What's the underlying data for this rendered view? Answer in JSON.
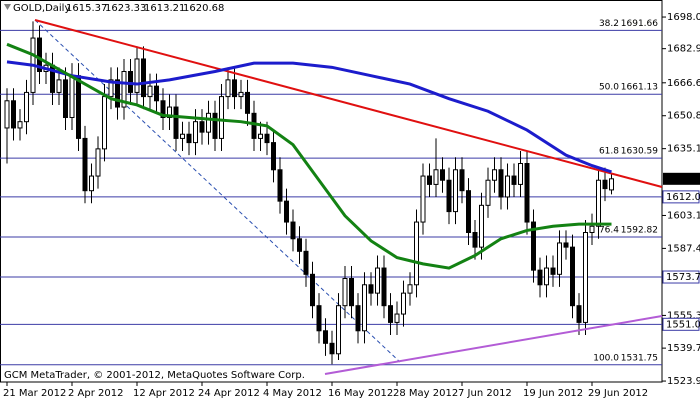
{
  "chart_data": {
    "type": "candlestick",
    "title": "GOLD,Daily",
    "footer": "GCM MetaTrader, © 2001-2012, MetaQuotes Software Corp.",
    "categories": [
      "21 Mar 2012",
      null,
      null,
      null,
      null,
      null,
      null,
      null,
      null,
      null,
      "2 Apr 2012",
      null,
      null,
      null,
      null,
      null,
      null,
      null,
      null,
      null,
      "12 Apr 2012",
      null,
      null,
      null,
      null,
      null,
      null,
      null,
      null,
      null,
      "24 Apr 2012",
      null,
      null,
      null,
      null,
      null,
      null,
      null,
      null,
      null,
      "4 May 2012",
      null,
      null,
      null,
      null,
      null,
      null,
      null,
      null,
      null,
      "16 May 2012",
      null,
      null,
      null,
      null,
      null,
      null,
      null,
      null,
      null,
      "28 May 2012",
      null,
      null,
      null,
      null,
      null,
      null,
      null,
      null,
      null,
      "7 Jun 2012",
      null,
      null,
      null,
      null,
      null,
      null,
      null,
      null,
      null,
      "19 Jun 2012",
      null,
      null,
      null,
      null,
      null,
      null,
      null,
      null,
      null,
      "29 Jun 2012",
      null,
      null,
      null
    ],
    "open": [
      1645,
      1658,
      1645,
      1648,
      1662,
      1688,
      1672,
      1675,
      1662,
      1668,
      1650,
      1670,
      1640,
      1615,
      1622,
      1635,
      1660,
      1668,
      1655,
      1672,
      1662,
      1678,
      1660,
      1665,
      1658,
      1650,
      1655,
      1640,
      1642,
      1638,
      1648,
      1643,
      1652,
      1640,
      1660,
      1668,
      1660,
      1662,
      1652,
      1640,
      1642,
      1638,
      1625,
      1610,
      1600,
      1592,
      1586,
      1575,
      1560,
      1548,
      1542,
      1537,
      1560,
      1573,
      1560,
      1548,
      1570,
      1566,
      1578,
      1560,
      1552,
      1556,
      1566,
      1570,
      1600,
      1622,
      1618,
      1625,
      1620,
      1605,
      1625,
      1615,
      1595,
      1588,
      1608,
      1620,
      1625,
      1612,
      1622,
      1618,
      1628,
      1600,
      1577,
      1570,
      1578,
      1575,
      1590,
      1588,
      1560,
      1552,
      1595,
      1598,
      1620,
      1615.37
    ],
    "high": [
      1664,
      1664,
      1654,
      1668,
      1696,
      1694,
      1681,
      1681,
      1674,
      1674,
      1676,
      1676,
      1646,
      1628,
      1641,
      1666,
      1674,
      1674,
      1678,
      1678,
      1684,
      1684,
      1671,
      1671,
      1664,
      1661,
      1661,
      1648,
      1648,
      1654,
      1654,
      1658,
      1658,
      1666,
      1674,
      1674,
      1668,
      1668,
      1658,
      1648,
      1648,
      1644,
      1631,
      1616,
      1606,
      1598,
      1592,
      1581,
      1566,
      1554,
      1548,
      1566,
      1579,
      1579,
      1566,
      1576,
      1576,
      1584,
      1584,
      1566,
      1562,
      1572,
      1576,
      1606,
      1628,
      1628,
      1640,
      1631,
      1626,
      1631,
      1631,
      1621,
      1601,
      1614,
      1626,
      1631,
      1631,
      1628,
      1628,
      1634,
      1634,
      1606,
      1583,
      1584,
      1584,
      1596,
      1596,
      1594,
      1566,
      1601,
      1604,
      1626,
      1626,
      1623.33
    ],
    "low": [
      1628,
      1639,
      1639,
      1642,
      1656,
      1666,
      1666,
      1656,
      1656,
      1644,
      1644,
      1634,
      1609,
      1609,
      1616,
      1629,
      1654,
      1649,
      1649,
      1656,
      1656,
      1654,
      1654,
      1652,
      1644,
      1644,
      1634,
      1634,
      1632,
      1632,
      1637,
      1637,
      1634,
      1634,
      1654,
      1654,
      1654,
      1646,
      1634,
      1634,
      1632,
      1619,
      1604,
      1594,
      1586,
      1580,
      1569,
      1554,
      1542,
      1536,
      1532,
      1534,
      1554,
      1554,
      1542,
      1542,
      1560,
      1560,
      1554,
      1546,
      1546,
      1550,
      1560,
      1564,
      1594,
      1612,
      1612,
      1614,
      1599,
      1599,
      1609,
      1589,
      1582,
      1582,
      1602,
      1614,
      1606,
      1606,
      1612,
      1612,
      1594,
      1571,
      1564,
      1564,
      1569,
      1569,
      1582,
      1554,
      1546,
      1546,
      1589,
      1592,
      1610,
      1613.21
    ],
    "close": [
      1658,
      1645,
      1648,
      1662,
      1688,
      1672,
      1675,
      1662,
      1668,
      1650,
      1670,
      1640,
      1615,
      1622,
      1635,
      1660,
      1668,
      1655,
      1672,
      1662,
      1678,
      1660,
      1665,
      1658,
      1650,
      1655,
      1640,
      1642,
      1638,
      1648,
      1643,
      1652,
      1640,
      1660,
      1668,
      1660,
      1662,
      1652,
      1640,
      1642,
      1638,
      1625,
      1610,
      1600,
      1592,
      1586,
      1575,
      1560,
      1548,
      1542,
      1537,
      1560,
      1573,
      1560,
      1548,
      1570,
      1566,
      1578,
      1560,
      1552,
      1556,
      1566,
      1570,
      1600,
      1622,
      1618,
      1625,
      1620,
      1605,
      1625,
      1615,
      1595,
      1588,
      1608,
      1620,
      1625,
      1612,
      1622,
      1618,
      1628,
      1600,
      1577,
      1570,
      1578,
      1575,
      1590,
      1588,
      1560,
      1552,
      1595,
      1598,
      1620,
      1616,
      1620.68
    ],
    "up_color": "#ffffff",
    "down_color": "#000000",
    "overlays": [
      {
        "color": "#1c1ccc",
        "x": [
          0,
          4,
          10,
          16,
          20,
          25,
          32,
          38,
          44,
          50,
          56,
          62,
          68,
          74,
          80,
          86,
          90,
          93
        ],
        "values": [
          1676.6,
          1675,
          1670,
          1667,
          1666,
          1668,
          1672,
          1676,
          1676,
          1674,
          1670,
          1666,
          1659,
          1653,
          1644,
          1632,
          1627,
          1624
        ]
      },
      {
        "color": "#138213",
        "x": [
          0,
          4,
          8,
          12,
          16,
          20,
          24,
          28,
          32,
          36,
          40,
          44,
          48,
          52,
          56,
          60,
          64,
          68,
          72,
          76,
          80,
          84,
          88,
          93
        ],
        "values": [
          1685,
          1680,
          1673,
          1666,
          1659,
          1656,
          1651,
          1650,
          1649,
          1648,
          1646,
          1637,
          1620,
          1603,
          1591,
          1583,
          1580,
          1578,
          1584,
          1592,
          1596,
          1598,
          1599,
          1599
        ]
      }
    ],
    "fib_levels": [
      {
        "ratio": "38.2",
        "value": 1691.66
      },
      {
        "ratio": "50.0",
        "value": 1661.13
      },
      {
        "ratio": "61.8",
        "value": 1630.59
      },
      {
        "ratio": "76.4",
        "value": 1592.82
      },
      {
        "ratio": "100.0",
        "value": 1531.75
      }
    ],
    "levels": [
      1612.04,
      1573.71,
      1551.09
    ],
    "last_price": 1620.68,
    "ylim": [
      1523.5,
      1706.2
    ],
    "yticks": [
      1698.05,
      1682.92,
      {
        "value": 1666.6,
        "label": "1666.60"
      },
      1650.85,
      {
        "value": 1635.1,
        "label": "1635.10"
      },
      1603.15,
      {
        "value": 1587.4,
        "label": "1587.40"
      },
      1555.35,
      {
        "value": 1539.7,
        "label": "1539.70"
      },
      1523.95
    ],
    "line_color": "#3b3ba6"
  }
}
